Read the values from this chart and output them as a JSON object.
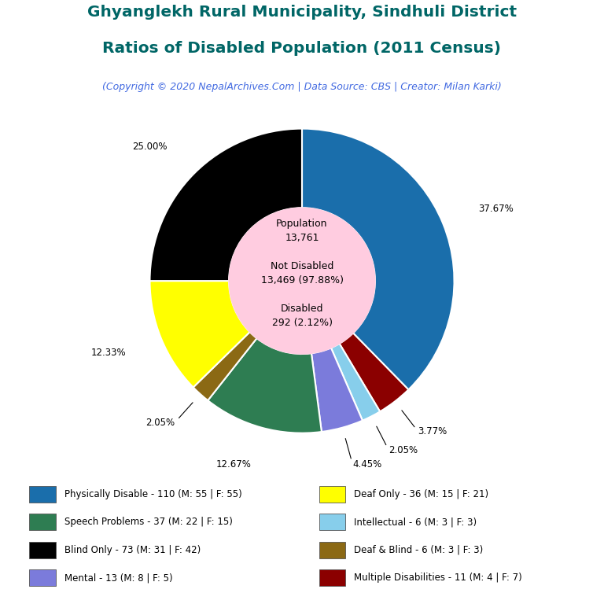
{
  "title_line1": "Ghyanglekh Rural Municipality, Sindhuli District",
  "title_line2": "Ratios of Disabled Population (2011 Census)",
  "subtitle": "(Copyright © 2020 NepalArchives.Com | Data Source: CBS | Creator: Milan Karki)",
  "title_color": "#006666",
  "subtitle_color": "#4169e1",
  "total_population": 13761,
  "not_disabled": 13469,
  "not_disabled_pct": 97.88,
  "disabled": 292,
  "disabled_pct": 2.12,
  "center_bg_color": "#ffcce0",
  "background_color": "#ffffff",
  "slices_ordered": [
    {
      "label": "Physically Disable - 110 (M: 55 | F: 55)",
      "value": 110,
      "pct": 37.67,
      "color": "#1a6eab"
    },
    {
      "label": "Multiple Disabilities - 11 (M: 4 | F: 7)",
      "value": 11,
      "pct": 3.77,
      "color": "#8B0000"
    },
    {
      "label": "Intellectual - 6 (M: 3 | F: 3)",
      "value": 6,
      "pct": 2.05,
      "color": "#87CEEB"
    },
    {
      "label": "Mental - 13 (M: 8 | F: 5)",
      "value": 13,
      "pct": 4.45,
      "color": "#7b7bdb"
    },
    {
      "label": "Speech Problems - 37 (M: 22 | F: 15)",
      "value": 37,
      "pct": 12.67,
      "color": "#2e7d52"
    },
    {
      "label": "Deaf & Blind - 6 (M: 3 | F: 3)",
      "value": 6,
      "pct": 2.05,
      "color": "#8B6914"
    },
    {
      "label": "Deaf Only - 36 (M: 15 | F: 21)",
      "value": 36,
      "pct": 12.33,
      "color": "#ffff00"
    },
    {
      "label": "Blind Only - 73 (M: 31 | F: 42)",
      "value": 73,
      "pct": 25.0,
      "color": "#000000"
    }
  ],
  "legend_items": [
    {
      "label": "Physically Disable - 110 (M: 55 | F: 55)",
      "color": "#1a6eab"
    },
    {
      "label": "Deaf Only - 36 (M: 15 | F: 21)",
      "color": "#ffff00"
    },
    {
      "label": "Speech Problems - 37 (M: 22 | F: 15)",
      "color": "#2e7d52"
    },
    {
      "label": "Intellectual - 6 (M: 3 | F: 3)",
      "color": "#87CEEB"
    },
    {
      "label": "Blind Only - 73 (M: 31 | F: 42)",
      "color": "#000000"
    },
    {
      "label": "Deaf & Blind - 6 (M: 3 | F: 3)",
      "color": "#8B6914"
    },
    {
      "label": "Mental - 13 (M: 8 | F: 5)",
      "color": "#7b7bdb"
    },
    {
      "label": "Multiple Disabilities - 11 (M: 4 | F: 7)",
      "color": "#8B0000"
    }
  ]
}
